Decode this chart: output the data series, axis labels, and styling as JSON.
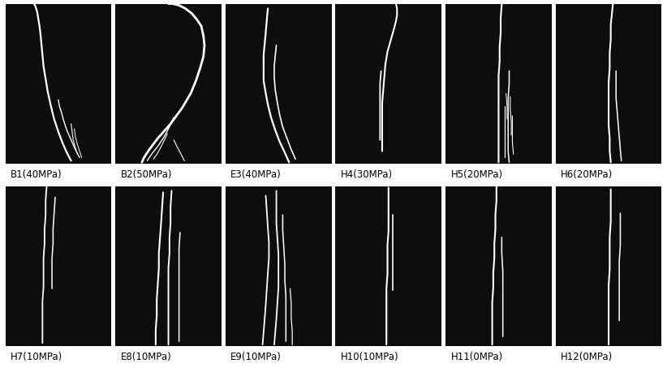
{
  "labels": [
    "B1(40MPa)",
    "B2(50MPa)",
    "E3(40MPa)",
    "H4(30MPa)",
    "H5(20MPa)",
    "H6(20MPa)",
    "H7(10MPa)",
    "E8(10MPa)",
    "E9(10MPa)",
    "H10(10MPa)",
    "H11(0MPa)",
    "H12(0MPa)"
  ],
  "bg_color": "#0d0d0d",
  "line_color": "white",
  "fig_bg": "white",
  "label_fontsize": 8.5,
  "rows": 2,
  "cols": 6,
  "fractures": {
    "B1": [
      {
        "x": [
          0.62,
          0.58,
          0.54,
          0.5,
          0.46,
          0.43,
          0.4,
          0.38,
          0.36,
          0.35,
          0.34,
          0.33,
          0.32,
          0.31,
          0.3,
          0.29,
          0.28,
          0.27
        ],
        "y": [
          0.02,
          0.07,
          0.13,
          0.2,
          0.28,
          0.36,
          0.45,
          0.53,
          0.61,
          0.68,
          0.75,
          0.82,
          0.87,
          0.91,
          0.95,
          0.97,
          0.99,
          1.0
        ],
        "lw": 1.6
      },
      {
        "x": [
          0.7,
          0.66,
          0.62,
          0.58,
          0.55,
          0.53,
          0.51,
          0.5
        ],
        "y": [
          0.04,
          0.09,
          0.15,
          0.21,
          0.27,
          0.32,
          0.36,
          0.4
        ],
        "lw": 1.0
      },
      {
        "x": [
          0.68,
          0.66,
          0.64,
          0.63,
          0.62
        ],
        "y": [
          0.06,
          0.1,
          0.15,
          0.2,
          0.25
        ],
        "lw": 0.8
      },
      {
        "x": [
          0.72,
          0.7,
          0.68,
          0.66,
          0.65
        ],
        "y": [
          0.04,
          0.08,
          0.12,
          0.17,
          0.22
        ],
        "lw": 0.7
      }
    ],
    "B2": [
      {
        "x": [
          0.25,
          0.27,
          0.32,
          0.4,
          0.52,
          0.63,
          0.71,
          0.76,
          0.8,
          0.83,
          0.84,
          0.83,
          0.81,
          0.77,
          0.72,
          0.66,
          0.6,
          0.54,
          0.5
        ],
        "y": [
          0.01,
          0.04,
          0.09,
          0.16,
          0.25,
          0.35,
          0.44,
          0.52,
          0.6,
          0.67,
          0.74,
          0.8,
          0.86,
          0.9,
          0.94,
          0.97,
          0.99,
          1.0,
          1.0
        ],
        "lw": 2.0
      },
      {
        "x": [
          0.3,
          0.34,
          0.4,
          0.46,
          0.5,
          0.53,
          0.55
        ],
        "y": [
          0.02,
          0.06,
          0.11,
          0.17,
          0.22,
          0.26,
          0.29
        ],
        "lw": 1.0
      },
      {
        "x": [
          0.36,
          0.4,
          0.44,
          0.47,
          0.49
        ],
        "y": [
          0.03,
          0.07,
          0.12,
          0.16,
          0.19
        ],
        "lw": 0.8
      },
      {
        "x": [
          0.65,
          0.62,
          0.58,
          0.55
        ],
        "y": [
          0.02,
          0.06,
          0.11,
          0.15
        ],
        "lw": 0.8
      }
    ],
    "E3": [
      {
        "x": [
          0.6,
          0.56,
          0.51,
          0.47,
          0.43,
          0.4,
          0.38,
          0.36,
          0.36,
          0.36,
          0.37,
          0.38,
          0.39,
          0.4
        ],
        "y": [
          0.01,
          0.07,
          0.14,
          0.21,
          0.29,
          0.37,
          0.44,
          0.52,
          0.6,
          0.68,
          0.75,
          0.82,
          0.9,
          0.97
        ],
        "lw": 1.6
      },
      {
        "x": [
          0.66,
          0.62,
          0.58,
          0.54,
          0.51,
          0.49,
          0.47,
          0.46,
          0.46,
          0.47,
          0.48
        ],
        "y": [
          0.03,
          0.09,
          0.16,
          0.23,
          0.31,
          0.38,
          0.46,
          0.54,
          0.61,
          0.68,
          0.74
        ],
        "lw": 1.2
      }
    ],
    "H4": [
      {
        "x": [
          0.44,
          0.44,
          0.44,
          0.44,
          0.44,
          0.45,
          0.46,
          0.47,
          0.49,
          0.52,
          0.55,
          0.57,
          0.58,
          0.58,
          0.57
        ],
        "y": [
          0.08,
          0.15,
          0.22,
          0.3,
          0.38,
          0.46,
          0.54,
          0.62,
          0.7,
          0.77,
          0.84,
          0.89,
          0.93,
          0.97,
          1.0
        ],
        "lw": 1.5
      },
      {
        "x": [
          0.42,
          0.42,
          0.42,
          0.42,
          0.42,
          0.43
        ],
        "y": [
          0.15,
          0.23,
          0.31,
          0.4,
          0.5,
          0.58
        ],
        "lw": 1.3
      }
    ],
    "H5": [
      {
        "x": [
          0.5,
          0.5,
          0.5,
          0.5,
          0.5,
          0.5,
          0.5,
          0.51,
          0.51,
          0.52,
          0.52,
          0.53
        ],
        "y": [
          0.01,
          0.1,
          0.19,
          0.28,
          0.37,
          0.46,
          0.55,
          0.64,
          0.73,
          0.82,
          0.91,
          1.0
        ],
        "lw": 1.5
      },
      {
        "x": [
          0.6,
          0.59,
          0.59,
          0.59,
          0.59,
          0.59,
          0.6,
          0.6
        ],
        "y": [
          0.01,
          0.08,
          0.16,
          0.24,
          0.32,
          0.41,
          0.5,
          0.58
        ],
        "lw": 1.1
      },
      {
        "x": [
          0.56,
          0.56,
          0.56,
          0.56,
          0.56
        ],
        "y": [
          0.04,
          0.12,
          0.2,
          0.28,
          0.36
        ],
        "lw": 0.9
      },
      {
        "x": [
          0.64,
          0.63,
          0.63,
          0.63
        ],
        "y": [
          0.06,
          0.14,
          0.22,
          0.3
        ],
        "lw": 0.8
      },
      {
        "x": [
          0.62,
          0.62,
          0.61,
          0.61
        ],
        "y": [
          0.18,
          0.26,
          0.34,
          0.42
        ],
        "lw": 0.8
      },
      {
        "x": [
          0.58,
          0.58,
          0.57
        ],
        "y": [
          0.28,
          0.36,
          0.44
        ],
        "lw": 0.7
      }
    ],
    "H6": [
      {
        "x": [
          0.52,
          0.51,
          0.51,
          0.5,
          0.5,
          0.5,
          0.5,
          0.51,
          0.51,
          0.52,
          0.52,
          0.53,
          0.54
        ],
        "y": [
          0.01,
          0.08,
          0.16,
          0.24,
          0.33,
          0.42,
          0.51,
          0.6,
          0.69,
          0.78,
          0.87,
          0.93,
          1.0
        ],
        "lw": 1.5
      },
      {
        "x": [
          0.62,
          0.61,
          0.6,
          0.59,
          0.58,
          0.57,
          0.57,
          0.57
        ],
        "y": [
          0.02,
          0.09,
          0.17,
          0.25,
          0.33,
          0.41,
          0.5,
          0.58
        ],
        "lw": 1.1
      }
    ],
    "H7": [
      {
        "x": [
          0.35,
          0.35,
          0.35,
          0.35,
          0.36,
          0.36,
          0.36,
          0.37,
          0.37,
          0.38,
          0.38,
          0.39
        ],
        "y": [
          0.02,
          0.1,
          0.19,
          0.28,
          0.37,
          0.46,
          0.55,
          0.64,
          0.73,
          0.82,
          0.91,
          1.0
        ],
        "lw": 1.3
      },
      {
        "x": [
          0.44,
          0.44,
          0.44,
          0.45,
          0.45,
          0.46,
          0.47
        ],
        "y": [
          0.36,
          0.45,
          0.55,
          0.64,
          0.73,
          0.83,
          0.93
        ],
        "lw": 1.1
      }
    ],
    "E8": [
      {
        "x": [
          0.38,
          0.38,
          0.39,
          0.39,
          0.4,
          0.41,
          0.41,
          0.42,
          0.43,
          0.44,
          0.45
        ],
        "y": [
          0.01,
          0.1,
          0.19,
          0.29,
          0.39,
          0.49,
          0.58,
          0.67,
          0.76,
          0.86,
          0.96
        ],
        "lw": 1.5
      },
      {
        "x": [
          0.5,
          0.5,
          0.5,
          0.5,
          0.5,
          0.5,
          0.51,
          0.51,
          0.52,
          0.52,
          0.53
        ],
        "y": [
          0.01,
          0.1,
          0.19,
          0.29,
          0.39,
          0.49,
          0.58,
          0.68,
          0.77,
          0.87,
          0.97
        ],
        "lw": 1.4
      },
      {
        "x": [
          0.6,
          0.6,
          0.6,
          0.6,
          0.6,
          0.6,
          0.6,
          0.61
        ],
        "y": [
          0.03,
          0.12,
          0.21,
          0.31,
          0.41,
          0.51,
          0.61,
          0.71
        ],
        "lw": 1.1
      }
    ],
    "E9": [
      {
        "x": [
          0.35,
          0.36,
          0.37,
          0.38,
          0.39,
          0.4,
          0.41,
          0.41,
          0.4,
          0.39,
          0.38
        ],
        "y": [
          0.01,
          0.09,
          0.17,
          0.26,
          0.36,
          0.46,
          0.55,
          0.65,
          0.74,
          0.84,
          0.94
        ],
        "lw": 1.3
      },
      {
        "x": [
          0.46,
          0.47,
          0.48,
          0.49,
          0.5,
          0.5,
          0.5,
          0.49,
          0.48,
          0.48,
          0.48
        ],
        "y": [
          0.01,
          0.09,
          0.17,
          0.27,
          0.37,
          0.47,
          0.57,
          0.67,
          0.77,
          0.87,
          0.97
        ],
        "lw": 1.3
      },
      {
        "x": [
          0.57,
          0.57,
          0.57,
          0.57,
          0.56,
          0.56,
          0.55,
          0.54,
          0.54
        ],
        "y": [
          0.03,
          0.11,
          0.21,
          0.31,
          0.41,
          0.51,
          0.62,
          0.72,
          0.82
        ],
        "lw": 1.1
      },
      {
        "x": [
          0.63,
          0.63,
          0.62,
          0.62,
          0.61
        ],
        "y": [
          0.01,
          0.09,
          0.18,
          0.27,
          0.36
        ],
        "lw": 0.9
      }
    ],
    "H10": [
      {
        "x": [
          0.48,
          0.48,
          0.48,
          0.48,
          0.48,
          0.49,
          0.49,
          0.49,
          0.5,
          0.5,
          0.5,
          0.5
        ],
        "y": [
          0.01,
          0.09,
          0.18,
          0.27,
          0.36,
          0.45,
          0.54,
          0.63,
          0.72,
          0.81,
          0.9,
          0.99
        ],
        "lw": 1.5
      },
      {
        "x": [
          0.54,
          0.54,
          0.54,
          0.54,
          0.54,
          0.54
        ],
        "y": [
          0.35,
          0.44,
          0.53,
          0.62,
          0.72,
          0.82
        ],
        "lw": 1.2
      }
    ],
    "H11": [
      {
        "x": [
          0.44,
          0.44,
          0.44,
          0.44,
          0.45,
          0.45,
          0.46,
          0.46,
          0.47,
          0.47,
          0.48,
          0.48
        ],
        "y": [
          0.01,
          0.09,
          0.18,
          0.27,
          0.37,
          0.46,
          0.55,
          0.64,
          0.73,
          0.82,
          0.91,
          1.0
        ],
        "lw": 1.5
      },
      {
        "x": [
          0.54,
          0.54,
          0.54,
          0.54,
          0.54,
          0.53,
          0.53
        ],
        "y": [
          0.06,
          0.15,
          0.25,
          0.36,
          0.47,
          0.58,
          0.68
        ],
        "lw": 1.1
      }
    ],
    "H12": [
      {
        "x": [
          0.5,
          0.5,
          0.5,
          0.5,
          0.5,
          0.51,
          0.51,
          0.51,
          0.52,
          0.52,
          0.52
        ],
        "y": [
          0.01,
          0.09,
          0.18,
          0.28,
          0.38,
          0.48,
          0.58,
          0.68,
          0.78,
          0.88,
          0.98
        ],
        "lw": 1.5
      },
      {
        "x": [
          0.6,
          0.6,
          0.6,
          0.6,
          0.6,
          0.61,
          0.61,
          0.61
        ],
        "y": [
          0.16,
          0.25,
          0.34,
          0.43,
          0.53,
          0.63,
          0.73,
          0.83
        ],
        "lw": 1.1
      }
    ]
  }
}
